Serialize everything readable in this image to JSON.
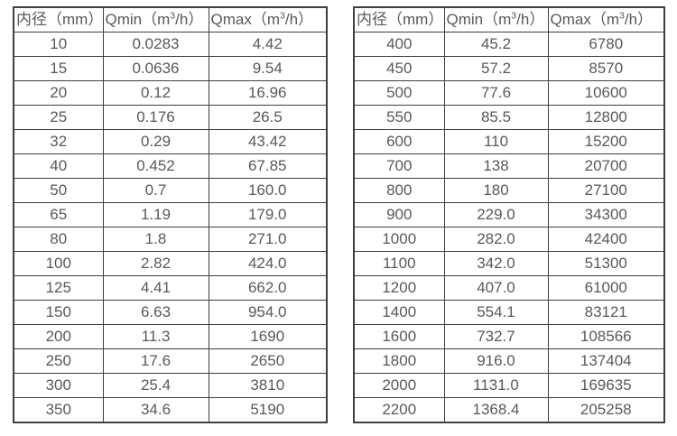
{
  "page": {
    "background": "#ffffff",
    "text_color": "#595959",
    "border_color": "#3f3f3f"
  },
  "tables": [
    {
      "id": "small-diameter-flow-table",
      "columns": [
        {
          "label": "内径（mm）"
        },
        {
          "label_prefix": "Qmin（m",
          "label_sup": "3",
          "label_suffix": "/h）"
        },
        {
          "label_prefix": "Qmax（m",
          "label_sup": "3",
          "label_suffix": "/h）"
        }
      ],
      "rows": [
        [
          "10",
          "0.0283",
          "4.42"
        ],
        [
          "15",
          "0.0636",
          "9.54"
        ],
        [
          "20",
          "0.12",
          "16.96"
        ],
        [
          "25",
          "0.176",
          "26.5"
        ],
        [
          "32",
          "0.29",
          "43.42"
        ],
        [
          "40",
          "0.452",
          "67.85"
        ],
        [
          "50",
          "0.7",
          "160.0"
        ],
        [
          "65",
          "1.19",
          "179.0"
        ],
        [
          "80",
          "1.8",
          "271.0"
        ],
        [
          "100",
          "2.82",
          "424.0"
        ],
        [
          "125",
          "4.41",
          "662.0"
        ],
        [
          "150",
          "6.63",
          "954.0"
        ],
        [
          "200",
          "11.3",
          "1690"
        ],
        [
          "250",
          "17.6",
          "2650"
        ],
        [
          "300",
          "25.4",
          "3810"
        ],
        [
          "350",
          "34.6",
          "5190"
        ]
      ]
    },
    {
      "id": "large-diameter-flow-table",
      "columns": [
        {
          "label": "内径（mm）"
        },
        {
          "label_prefix": "Qmin（m",
          "label_sup": "3",
          "label_suffix": "/h）"
        },
        {
          "label_prefix": "Qmax（m",
          "label_sup": "3",
          "label_suffix": "/h）"
        }
      ],
      "rows": [
        [
          "400",
          "45.2",
          "6780"
        ],
        [
          "450",
          "57.2",
          "8570"
        ],
        [
          "500",
          "77.6",
          "10600"
        ],
        [
          "550",
          "85.5",
          "12800"
        ],
        [
          "600",
          "110",
          "15200"
        ],
        [
          "700",
          "138",
          "20700"
        ],
        [
          "800",
          "180",
          "27100"
        ],
        [
          "900",
          "229.0",
          "34300"
        ],
        [
          "1000",
          "282.0",
          "42400"
        ],
        [
          "1100",
          "342.0",
          "51300"
        ],
        [
          "1200",
          "407.0",
          "61000"
        ],
        [
          "1400",
          "554.1",
          "83121"
        ],
        [
          "1600",
          "732.7",
          "108566"
        ],
        [
          "1800",
          "916.0",
          "137404"
        ],
        [
          "2000",
          "1131.0",
          "169635"
        ],
        [
          "2200",
          "1368.4",
          "205258"
        ]
      ]
    }
  ]
}
